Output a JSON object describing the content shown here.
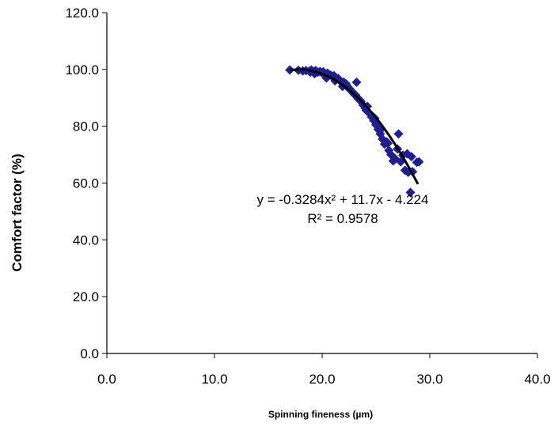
{
  "chart_data": {
    "type": "scatter",
    "title": "",
    "xlabel": "Spinning fineness (µm)",
    "ylabel": "Comfort factor (%)",
    "xlim": [
      0,
      40
    ],
    "ylim": [
      0,
      120
    ],
    "x_ticks": [
      "0.0",
      "10.0",
      "20.0",
      "30.0",
      "40.0"
    ],
    "y_ticks": [
      "0.0",
      "20.0",
      "40.0",
      "60.0",
      "80.0",
      "100.0",
      "120.0"
    ],
    "grid": false,
    "legend": "none",
    "marker": "diamond",
    "marker_color": "#1f1f8f",
    "trendline_color": "#000000",
    "series": [
      {
        "x": [
          17.0,
          17.8,
          18.2,
          18.5,
          18.8,
          19.0,
          19.2,
          19.4,
          19.6,
          19.8,
          20.0,
          20.1,
          20.3,
          20.5,
          20.6,
          20.8,
          21.0,
          21.1,
          21.3,
          21.5,
          21.6,
          21.8,
          22.0,
          22.1,
          22.3,
          22.5,
          22.6,
          22.8,
          23.0,
          23.1,
          23.2,
          23.3,
          23.5,
          23.6,
          23.8,
          24.0,
          24.1,
          24.3,
          24.5,
          24.6,
          24.8,
          25.0,
          25.2,
          25.4,
          25.6,
          25.8,
          26.0,
          26.2,
          26.4,
          26.6,
          26.8,
          27.0,
          27.1,
          27.5,
          27.7,
          27.9,
          28.0,
          28.2,
          28.3,
          28.4,
          28.8,
          19.3,
          20.4,
          21.2,
          21.9,
          22.4,
          23.4,
          24.2,
          24.9,
          25.5,
          26.1,
          27.3,
          28.1,
          29.0,
          18.9,
          22.2
        ],
        "y": [
          99.8,
          99.7,
          99.5,
          99.6,
          99.4,
          99.8,
          99.2,
          99.6,
          99.0,
          99.3,
          98.8,
          99.2,
          98.5,
          98.7,
          98.3,
          98.0,
          97.5,
          97.8,
          97.0,
          96.8,
          96.2,
          95.6,
          95.5,
          94.8,
          94.3,
          93.2,
          93.0,
          92.1,
          91.2,
          91.0,
          95.5,
          90.0,
          89.2,
          88.8,
          87.5,
          86.4,
          85.6,
          85.0,
          84.2,
          83.2,
          82.0,
          80.5,
          78.9,
          77.3,
          75.5,
          73.7,
          74.5,
          71.5,
          70.0,
          67.8,
          68.5,
          72.0,
          77.3,
          69.8,
          64.5,
          70.3,
          63.8,
          56.7,
          69.3,
          64.0,
          67.3,
          98.5,
          97.0,
          96.0,
          94.0,
          93.8,
          89.5,
          87.0,
          82.8,
          79.0,
          74.0,
          67.5,
          64.2,
          67.5,
          99.1,
          95.0
        ]
      }
    ],
    "trendline": {
      "type": "polynomial",
      "equation_text": "y = -0.3284x² + 11.7x - 4.224",
      "r2_text": "R² = 0.9578",
      "coefficients": [
        -0.3284,
        11.7,
        -4.224
      ],
      "x_range": [
        17.0,
        28.9
      ]
    }
  }
}
